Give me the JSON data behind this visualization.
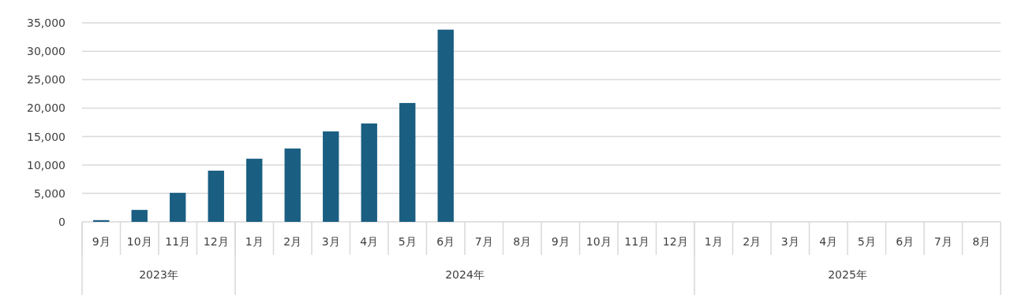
{
  "chart_data": {
    "type": "bar",
    "categories": [
      "9月",
      "10月",
      "11月",
      "12月",
      "1月",
      "2月",
      "3月",
      "4月",
      "5月",
      "6月",
      "7月",
      "8月",
      "9月",
      "10月",
      "11月",
      "12月",
      "1月",
      "2月",
      "3月",
      "4月",
      "5月",
      "6月",
      "7月",
      "8月"
    ],
    "values": [
      300,
      2100,
      5100,
      9000,
      11100,
      12900,
      15900,
      17300,
      20900,
      33800,
      null,
      null,
      null,
      null,
      null,
      null,
      null,
      null,
      null,
      null,
      null,
      null,
      null,
      null
    ],
    "color": "#1a5e82",
    "ylim": [
      0,
      35000
    ],
    "yticks": [
      {
        "value": 0,
        "label": "0"
      },
      {
        "value": 5000,
        "label": "5,000"
      },
      {
        "value": 10000,
        "label": "10,000"
      },
      {
        "value": 15000,
        "label": "15,000"
      },
      {
        "value": 20000,
        "label": "20,000"
      },
      {
        "value": 25000,
        "label": "25,000"
      },
      {
        "value": 30000,
        "label": "30,000"
      },
      {
        "value": 35000,
        "label": "35,000"
      }
    ],
    "grid": "y",
    "annotations": [
      "2023年",
      "2024年",
      "2025年"
    ]
  }
}
